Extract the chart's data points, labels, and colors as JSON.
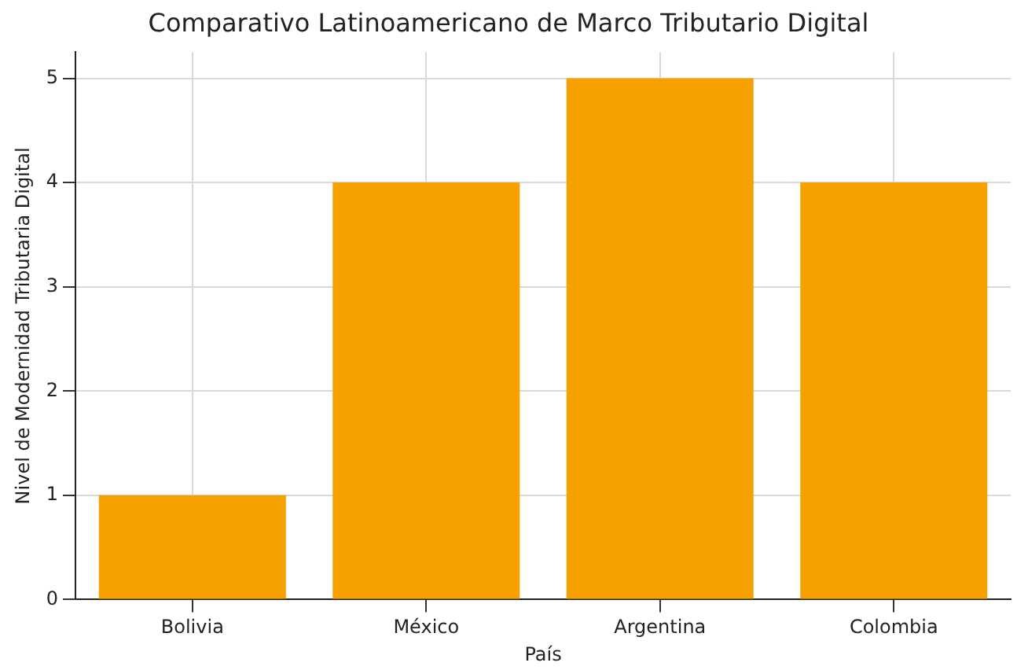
{
  "chart_data": {
    "type": "bar",
    "title": "Comparativo Latinoamericano de Marco Tributario Digital",
    "xlabel": "País",
    "ylabel": "Nivel de Modernidad Tributaria Digital",
    "categories": [
      "Bolivia",
      "México",
      "Argentina",
      "Colombia"
    ],
    "values": [
      1,
      4,
      5,
      4
    ],
    "color": "#f7a100",
    "ylim": [
      0,
      5.25
    ],
    "yticks": [
      0,
      1,
      2,
      3,
      4,
      5
    ],
    "grid": true,
    "legend": false
  }
}
